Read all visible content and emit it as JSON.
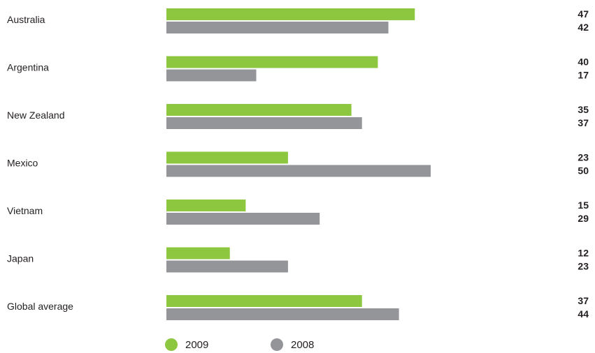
{
  "chart_data": {
    "type": "bar",
    "orientation": "horizontal",
    "categories": [
      "Australia",
      "Argentina",
      "New Zealand",
      "Mexico",
      "Vietnam",
      "Japan",
      "Global average"
    ],
    "series": [
      {
        "name": "2009",
        "color": "#8dc63f",
        "values": [
          47,
          40,
          35,
          23,
          15,
          12,
          37
        ]
      },
      {
        "name": "2008",
        "color": "#939598",
        "values": [
          42,
          17,
          37,
          50,
          29,
          23,
          44
        ]
      }
    ],
    "xlim": [
      0,
      50
    ],
    "grid": false,
    "legend": "bottom"
  }
}
